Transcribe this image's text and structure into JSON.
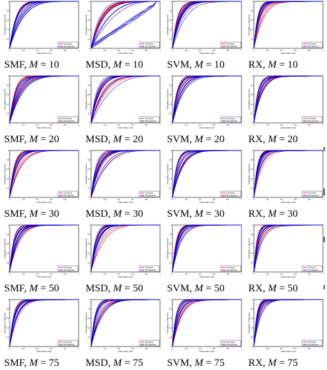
{
  "figure": {
    "legend_labels": [
      "150 bands",
      "36 projections"
    ],
    "x_axis_label": "False alarm rate",
    "y_axis_label": "Probability of detection",
    "x_ticks": [
      "0",
      "0.1",
      "0.2",
      "0.3",
      "0.4",
      "0.5",
      "0.6",
      "0.7",
      "0.8",
      "0.9",
      "1"
    ],
    "y_ticks": [
      "0",
      "0.1",
      "0.2",
      "0.3",
      "0.4",
      "0.5",
      "0.6",
      "0.7",
      "0.8",
      "0.9",
      "1"
    ],
    "colors": {
      "bands": "#ff0000",
      "projections": "#0000cc",
      "axis": "#000000"
    },
    "columns": [
      "SMF",
      "MSD",
      "SVM",
      "RX"
    ],
    "rows": [
      {
        "m": "10",
        "captions": [
          {
            "method": "SMF",
            "eq": "M",
            "val": " = 10"
          },
          {
            "method": "MSD",
            "eq": "M",
            "val": " = 10"
          },
          {
            "method": "SVM",
            "eq": "M",
            "val": " = 10"
          },
          {
            "method": "RX",
            "eq": "M",
            "val": " = 10"
          }
        ]
      },
      {
        "m": "20",
        "captions": [
          {
            "method": "SMF",
            "eq": "M",
            "val": " = 20"
          },
          {
            "method": "MSD",
            "eq": "M",
            "val": " = 20"
          },
          {
            "method": "SVM",
            "eq": "M",
            "val": " = 20"
          },
          {
            "method": "RX",
            "eq": "M",
            "val": " = 20"
          }
        ]
      },
      {
        "m": "30",
        "captions": [
          {
            "method": "SMF",
            "eq": "M",
            "val": " = 30"
          },
          {
            "method": "MSD",
            "eq": "M",
            "val": " = 30"
          },
          {
            "method": "SVM",
            "eq": "M",
            "val": " = 30"
          },
          {
            "method": "RX",
            "eq": "M",
            "val": " = 30"
          }
        ]
      },
      {
        "m": "50",
        "captions": [
          {
            "method": "SMF",
            "eq": "M",
            "val": " = 50"
          },
          {
            "method": "MSD",
            "eq": "M",
            "val": " = 50"
          },
          {
            "method": "SVM",
            "eq": "M",
            "val": " = 50"
          },
          {
            "method": "RX",
            "eq": "M",
            "val": " = 50"
          }
        ]
      },
      {
        "m": "75",
        "captions": [
          {
            "method": "SMF",
            "eq": "M",
            "val": " = 75"
          },
          {
            "method": "MSD",
            "eq": "M",
            "val": " = 75"
          },
          {
            "method": "SVM",
            "eq": "M",
            "val": " = 75"
          },
          {
            "method": "RX",
            "eq": "M",
            "val": " = 75"
          }
        ]
      }
    ]
  },
  "chart_data": {
    "type": "line",
    "description_source": "ROC curves grid, 5 rows (M) x 4 columns (detector)",
    "xlabel": "False alarm rate",
    "ylabel": "Probability of detection",
    "xlim": [
      0,
      1
    ],
    "ylim": [
      0,
      1
    ],
    "grid": false,
    "legend": "bottom-right",
    "series_names": [
      "150 bands",
      "36 projections"
    ],
    "panels_shape": [
      5,
      4
    ]
  }
}
